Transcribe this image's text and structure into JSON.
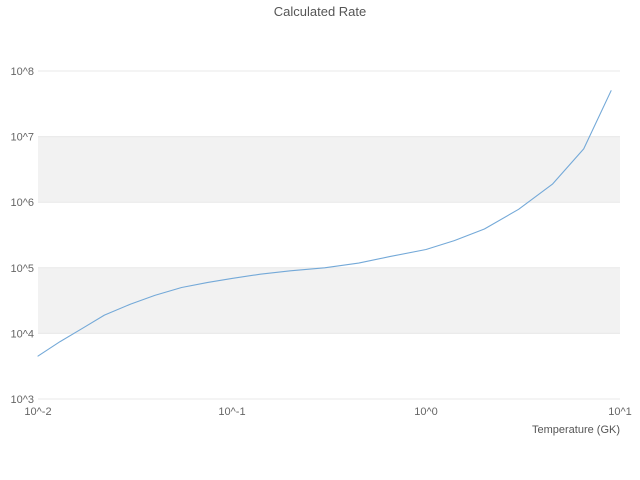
{
  "chart": {
    "colors": {
      "line": "#74a9d8",
      "band": "#f2f2f2",
      "gridline": "#e8e8e8",
      "tick_text": "#666666",
      "title_text": "#555555"
    }
  },
  "chart_data": {
    "type": "line",
    "title": "Calculated Rate",
    "xlabel": "Temperature (GK)",
    "ylabel": "",
    "xscale": "log",
    "yscale": "log",
    "xlim": [
      0.01,
      10
    ],
    "ylim": [
      1000,
      100000000
    ],
    "x_tick_labels": [
      "10^-2",
      "10^-1",
      "10^0",
      "10^1"
    ],
    "x_tick_values": [
      0.01,
      0.1,
      1,
      10
    ],
    "y_tick_labels": [
      "10^3",
      "10^4",
      "10^5",
      "10^6",
      "10^7",
      "10^8"
    ],
    "y_tick_values": [
      1000,
      10000,
      100000,
      1000000,
      10000000,
      100000000
    ],
    "grid": "horizontal-bands",
    "legend": "none",
    "series": [
      {
        "name": "calculated-rate",
        "x": [
          0.01,
          0.013,
          0.017,
          0.022,
          0.03,
          0.04,
          0.055,
          0.075,
          0.1,
          0.14,
          0.2,
          0.3,
          0.45,
          0.65,
          1.0,
          1.4,
          2.0,
          3.0,
          4.5,
          6.5,
          9.0
        ],
        "y": [
          4500,
          7500,
          12000,
          19000,
          28000,
          38000,
          50000,
          60000,
          69000,
          80000,
          90000,
          100000,
          118000,
          148000,
          190000,
          260000,
          390000,
          780000,
          1900000,
          6500000,
          50000000
        ]
      }
    ]
  }
}
